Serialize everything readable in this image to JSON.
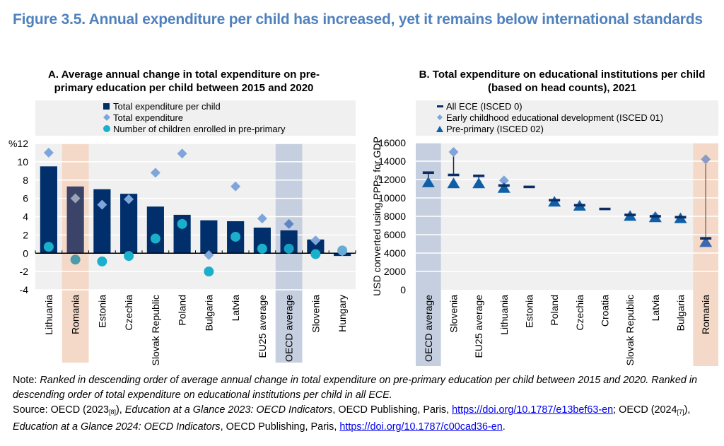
{
  "figure": {
    "title": "Figure 3.5. Annual expenditure per child has increased, yet it remains below international standards"
  },
  "colors": {
    "bar_navy": "#002f6c",
    "bar_highlight": "#3b4468",
    "diamond": "#7fa6dc",
    "circle": "#1ab0cc",
    "circle_highlight": "#4d9aa8",
    "triangle": "#0f5fa8",
    "dash": "#0b2d63",
    "plot_bg": "#f0f0f0",
    "romania_band": "#f5d9c8",
    "oecd_band": "#c6cfdf",
    "title_blue": "#4f81bd"
  },
  "chart_data": [
    {
      "type": "bar",
      "panel": "A",
      "title": "A. Average annual change in total expenditure on pre-primary education per child between 2015 and 2020",
      "ylabel": "%",
      "ylim": [
        -4,
        12
      ],
      "yticks": [
        12,
        10,
        8,
        6,
        4,
        2,
        0,
        -2,
        -4
      ],
      "ytick_labels": [
        "%12",
        "10",
        "8",
        "6",
        "4",
        "2",
        "0",
        "-2",
        "-4"
      ],
      "grid": true,
      "legend_placement": "top",
      "categories": [
        "Lithuania",
        "Romania",
        "Estonia",
        "Czechia",
        "Slovak Republic",
        "Poland",
        "Bulgaria",
        "Latvia",
        "EU25 average",
        "OECD average",
        "Slovenia",
        "Hungary"
      ],
      "highlight": {
        "Romania": "romania_band",
        "OECD average": "oecd_band"
      },
      "series": [
        {
          "name": "Total expenditure per child",
          "marker": "bar",
          "values": [
            9.5,
            7.3,
            7.0,
            6.5,
            5.1,
            4.2,
            3.6,
            3.5,
            2.8,
            2.5,
            1.5,
            -0.3
          ]
        },
        {
          "name": "Total expenditure",
          "marker": "diamond",
          "values": [
            11.0,
            6.0,
            5.3,
            5.9,
            8.8,
            10.9,
            -0.2,
            7.3,
            3.8,
            3.2,
            1.4,
            0.2
          ]
        },
        {
          "name": "Number of children enrolled in pre-primary",
          "marker": "circle",
          "values": [
            0.7,
            -0.7,
            -0.9,
            -0.3,
            1.6,
            3.2,
            -2.0,
            1.8,
            0.5,
            0.5,
            -0.1,
            0.3
          ]
        }
      ]
    },
    {
      "type": "scatter",
      "panel": "B",
      "title": "B. Total expenditure on educational institutions per child (based on head counts), 2021",
      "ylabel": "USD converted using PPPs for GDP",
      "ylim": [
        0,
        16000
      ],
      "yticks": [
        16000,
        14000,
        12000,
        10000,
        8000,
        6000,
        4000,
        2000,
        0
      ],
      "grid": true,
      "legend_placement": "top",
      "categories": [
        "OECD average",
        "Slovenia",
        "EU25 average",
        "Lithuania",
        "Estonia",
        "Poland",
        "Czechia",
        "Croatia",
        "Slovak Republic",
        "Latvia",
        "Bulgaria",
        "Romania"
      ],
      "highlight": {
        "OECD average": "oecd_band",
        "Romania": "romania_band"
      },
      "series": [
        {
          "name": "All ECE (ISCED 0)",
          "marker": "dash",
          "values": [
            12750,
            12500,
            12400,
            11350,
            11200,
            9750,
            9200,
            8800,
            8150,
            8000,
            7900,
            5600
          ]
        },
        {
          "name": "Early childhood educational development (ISCED 01)",
          "marker": "diamond",
          "values": [
            null,
            15000,
            null,
            11900,
            null,
            null,
            null,
            null,
            null,
            8000,
            null,
            14200
          ]
        },
        {
          "name": "Pre-primary (ISCED 02)",
          "marker": "triangle",
          "values": [
            11700,
            11600,
            11600,
            11100,
            null,
            9600,
            9150,
            null,
            8050,
            7900,
            7800,
            5200
          ]
        }
      ]
    }
  ],
  "note": {
    "label": "Note: ",
    "text": "Ranked in descending order of average annual change in total expenditure on pre-primary education per child between 2015 and 2020. Ranked in descending order of total expenditure on educational institutions per child in all ECE.",
    "source_label": "Source: OECD (2023",
    "ref1": "[8]",
    "after_ref1": "), ",
    "pub1": "Education at a Glance 2023: OECD Indicators",
    "publisher1": ", OECD Publishing, Paris, ",
    "link1": "https://doi.org/10.1787/e13bef63-en",
    "between": "; OECD (2024",
    "ref2": "[7]",
    "after_ref2": "), ",
    "pub2": "Education at a Glance 2024: OECD Indicators",
    "publisher2": ", OECD Publishing, Paris, ",
    "link2": "https://doi.org/10.1787/c00cad36-en",
    "end": "."
  }
}
